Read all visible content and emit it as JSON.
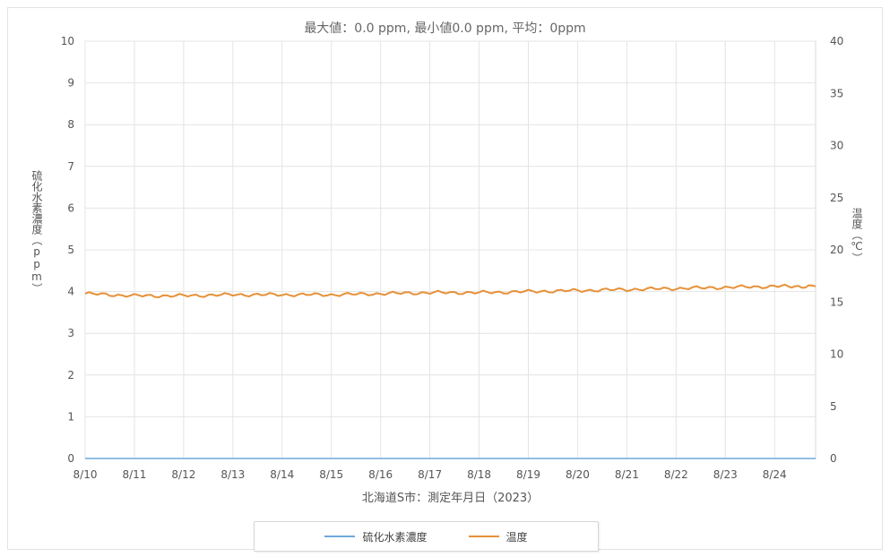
{
  "chart_data": {
    "type": "line",
    "title": "最大値：0.0 ppm, 最小値0.0 ppm, 平均：0ppm",
    "xlabel": "北海道S市：測定年月日（2023）",
    "ylabel_left": "硫化水素濃度（ppm）",
    "ylabel_right": "温度（℃）",
    "x_ticks": [
      "8/10",
      "8/11",
      "8/12",
      "8/13",
      "8/14",
      "8/15",
      "8/16",
      "8/17",
      "8/18",
      "8/19",
      "8/20",
      "8/21",
      "8/22",
      "8/23",
      "8/24"
    ],
    "x_range": [
      "2023-08-10",
      "2023-08-24 20:00"
    ],
    "ylim_left": [
      0,
      10
    ],
    "yticks_left": [
      0,
      1,
      2,
      3,
      4,
      5,
      6,
      7,
      8,
      9,
      10
    ],
    "ylim_right": [
      0,
      40
    ],
    "yticks_right": [
      0,
      5,
      10,
      15,
      20,
      25,
      30,
      35,
      40
    ],
    "grid": true,
    "legend_position": "bottom",
    "series": [
      {
        "name": "硫化水素濃度",
        "axis": "left",
        "color": "#6fa8dc",
        "x": [
          "2023-08-10",
          "2023-08-24 20:00"
        ],
        "y": [
          0,
          0
        ]
      },
      {
        "name": "温度",
        "axis": "right",
        "color": "#e69138",
        "x": [
          "2023-08-10",
          "2023-08-11",
          "2023-08-12",
          "2023-08-13",
          "2023-08-14",
          "2023-08-15",
          "2023-08-16",
          "2023-08-17",
          "2023-08-18",
          "2023-08-19",
          "2023-08-20",
          "2023-08-21",
          "2023-08-22",
          "2023-08-23",
          "2023-08-24",
          "2023-08-24 20:00"
        ],
        "y": [
          15.8,
          15.6,
          15.6,
          15.7,
          15.7,
          15.7,
          15.8,
          15.9,
          15.9,
          16.0,
          16.1,
          16.2,
          16.3,
          16.4,
          16.5,
          16.5
        ]
      }
    ]
  }
}
